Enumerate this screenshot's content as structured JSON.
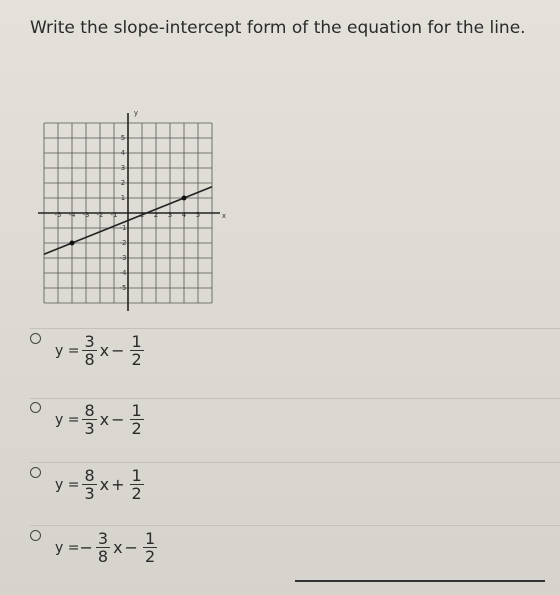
{
  "question": "Write the slope-intercept form of the equation for the line.",
  "graph": {
    "xticks": [
      -5,
      -4,
      -3,
      -2,
      -1,
      1,
      2,
      3,
      4,
      5
    ],
    "yticks": [
      5,
      4,
      3,
      2,
      1,
      -1,
      -2,
      -3,
      -4,
      -5
    ],
    "x_label": "x",
    "y_label": "y",
    "points": [
      [
        -4,
        -2
      ],
      [
        4,
        1
      ]
    ]
  },
  "options": [
    {
      "lhs": "y =",
      "coef_num": "3",
      "coef_den": "8",
      "var": "x",
      "op": "−",
      "const_num": "1",
      "const_den": "2"
    },
    {
      "lhs": "y =",
      "coef_num": "8",
      "coef_den": "3",
      "var": "x",
      "op": "−",
      "const_num": "1",
      "const_den": "2"
    },
    {
      "lhs": "y =",
      "coef_num": "8",
      "coef_den": "3",
      "var": "x",
      "op": "+",
      "const_num": "1",
      "const_den": "2"
    },
    {
      "lhs": "y =",
      "coef_sign": "−",
      "coef_num": "3",
      "coef_den": "8",
      "var": "x",
      "op": "−",
      "const_num": "1",
      "const_den": "2"
    }
  ]
}
